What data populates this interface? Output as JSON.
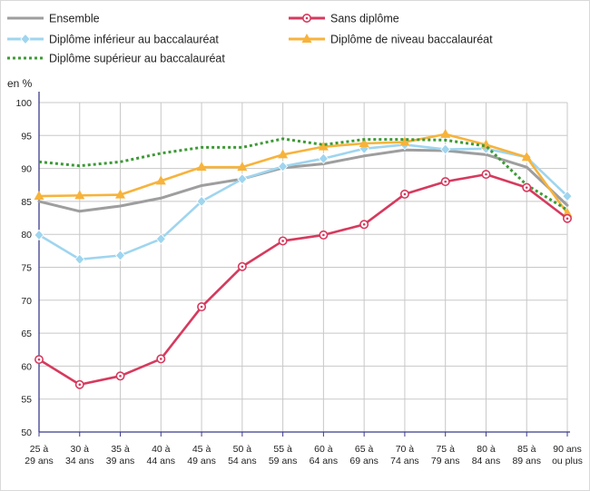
{
  "chart_data": {
    "type": "line",
    "ylabel": "en %",
    "ylim": [
      50,
      100
    ],
    "yticks": [
      50,
      55,
      60,
      65,
      70,
      75,
      80,
      85,
      90,
      95,
      100
    ],
    "grid": true,
    "legend_position": "top",
    "categories": [
      [
        "25 à",
        "29 ans"
      ],
      [
        "30 à",
        "34 ans"
      ],
      [
        "35 à",
        "39 ans"
      ],
      [
        "40 à",
        "44 ans"
      ],
      [
        "45 à",
        "49 ans"
      ],
      [
        "50 à",
        "54 ans"
      ],
      [
        "55 à",
        "59 ans"
      ],
      [
        "60 à",
        "64 ans"
      ],
      [
        "65 à",
        "69 ans"
      ],
      [
        "70 à",
        "74 ans"
      ],
      [
        "75 à",
        "79 ans"
      ],
      [
        "80 à",
        "84 ans"
      ],
      [
        "85 à",
        "89 ans"
      ],
      [
        "90 ans",
        "ou plus"
      ]
    ],
    "series": [
      {
        "name": "Ensemble",
        "color": "#9e9e9e",
        "style": "solid",
        "marker": "none",
        "values": [
          85.0,
          83.5,
          84.3,
          85.5,
          87.4,
          88.4,
          90.1,
          90.7,
          91.9,
          92.8,
          92.7,
          92.1,
          90.2,
          84.4
        ]
      },
      {
        "name": "Sans diplôme",
        "color": "#d63a5e",
        "style": "solid",
        "marker": "circle",
        "values": [
          61.0,
          57.2,
          58.5,
          61.1,
          69.0,
          75.1,
          79.0,
          79.9,
          81.5,
          86.1,
          88.0,
          89.1,
          87.1,
          82.4
        ]
      },
      {
        "name": "Diplôme inférieur au baccalauréat",
        "color": "#9fd5ef",
        "style": "solid",
        "marker": "diamond",
        "values": [
          79.9,
          76.2,
          76.8,
          79.3,
          85.0,
          88.4,
          90.3,
          91.5,
          93.0,
          93.6,
          92.9,
          93.0,
          91.7,
          85.8
        ]
      },
      {
        "name": "Diplôme de niveau baccalauréat",
        "color": "#f7b33b",
        "style": "solid",
        "marker": "triangle",
        "values": [
          85.8,
          85.9,
          86.0,
          88.1,
          90.2,
          90.2,
          92.1,
          93.3,
          93.8,
          94.0,
          95.2,
          93.6,
          91.7,
          83.2
        ]
      },
      {
        "name": "Diplôme supérieur au baccalauréat",
        "color": "#3d9a36",
        "style": "dotted",
        "marker": "none",
        "values": [
          91.0,
          90.4,
          91.0,
          92.3,
          93.2,
          93.2,
          94.5,
          93.6,
          94.4,
          94.4,
          94.3,
          93.4,
          87.5,
          83.7
        ]
      }
    ]
  }
}
